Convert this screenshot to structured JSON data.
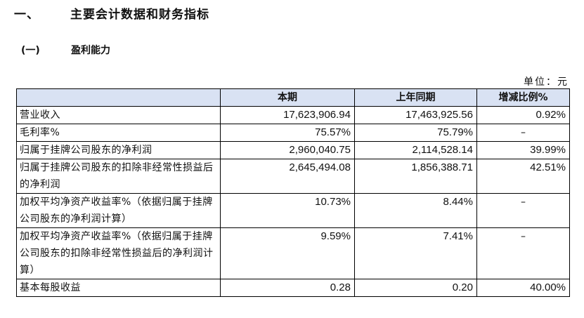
{
  "heading1": {
    "number": "一、",
    "title": "主要会计数据和财务指标"
  },
  "heading2": {
    "number": "(一)",
    "title": "盈利能力"
  },
  "unit_label": "单位：元",
  "table": {
    "headers": [
      "",
      "本期",
      "上年同期",
      "增减比例%"
    ],
    "rows": [
      {
        "label": "营业收入",
        "current": "17,623,906.94",
        "prior": "17,463,925.56",
        "change": "0.92%"
      },
      {
        "label": "毛利率%",
        "current": "75.57%",
        "prior": "75.79%",
        "change": "–"
      },
      {
        "label": "归属于挂牌公司股东的净利润",
        "current": "2,960,040.75",
        "prior": "2,114,528.14",
        "change": "39.99%"
      },
      {
        "label": "归属于挂牌公司股东的扣除非经常性损益后的净利润",
        "current": "2,645,494.08",
        "prior": "1,856,388.71",
        "change": "42.51%"
      },
      {
        "label": "加权平均净资产收益率%（依据归属于挂牌公司股东的净利润计算）",
        "current": "10.73%",
        "prior": "8.44%",
        "change": "–"
      },
      {
        "label": "加权平均净资产收益率%（依据归属于挂牌公司股东的扣除非经常性损益后的净利润计算）",
        "current": "9.59%",
        "prior": "7.41%",
        "change": "–"
      },
      {
        "label": "基本每股收益",
        "current": "0.28",
        "prior": "0.20",
        "change": "40.00%"
      }
    ]
  }
}
